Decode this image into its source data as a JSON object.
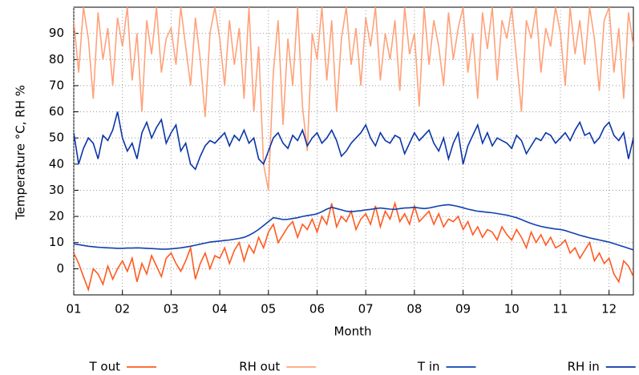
{
  "chart_data": {
    "type": "line",
    "xlabel": "Month",
    "ylabel": "Temperature °C, RH %",
    "x": [
      1.0,
      1.1,
      1.2,
      1.3,
      1.4,
      1.5,
      1.6,
      1.7,
      1.8,
      1.9,
      2.0,
      2.1,
      2.2,
      2.3,
      2.4,
      2.5,
      2.6,
      2.7,
      2.8,
      2.9,
      3.0,
      3.1,
      3.2,
      3.3,
      3.4,
      3.5,
      3.6,
      3.7,
      3.8,
      3.9,
      4.0,
      4.1,
      4.2,
      4.3,
      4.4,
      4.5,
      4.6,
      4.7,
      4.8,
      4.9,
      5.0,
      5.1,
      5.2,
      5.3,
      5.4,
      5.5,
      5.6,
      5.7,
      5.8,
      5.9,
      6.0,
      6.1,
      6.2,
      6.3,
      6.4,
      6.5,
      6.6,
      6.7,
      6.8,
      6.9,
      7.0,
      7.1,
      7.2,
      7.3,
      7.4,
      7.5,
      7.6,
      7.7,
      7.8,
      7.9,
      8.0,
      8.1,
      8.2,
      8.3,
      8.4,
      8.5,
      8.6,
      8.7,
      8.8,
      8.9,
      9.0,
      9.1,
      9.2,
      9.3,
      9.4,
      9.5,
      9.6,
      9.7,
      9.8,
      9.9,
      10.0,
      10.1,
      10.2,
      10.3,
      10.4,
      10.5,
      10.6,
      10.7,
      10.8,
      10.9,
      11.0,
      11.1,
      11.2,
      11.3,
      11.4,
      11.5,
      11.6,
      11.7,
      11.8,
      11.9,
      12.0,
      12.1,
      12.2,
      12.3,
      12.4,
      12.5
    ],
    "series": [
      {
        "name": "T out",
        "color": "#ff5a1f",
        "values": [
          6,
          2,
          -3,
          -8,
          0,
          -2,
          -6,
          1,
          -4,
          0,
          3,
          -1,
          4,
          -5,
          2,
          -2,
          5,
          1,
          -3,
          4,
          6,
          2,
          -1,
          3,
          8,
          -4,
          2,
          6,
          0,
          5,
          4,
          8,
          2,
          7,
          10,
          3,
          9,
          6,
          12,
          8,
          14,
          17,
          10,
          13,
          16,
          18,
          12,
          17,
          15,
          19,
          14,
          20,
          17,
          25,
          16,
          20,
          18,
          22,
          15,
          19,
          21,
          17,
          24,
          16,
          22,
          19,
          25,
          18,
          21,
          17,
          24,
          18,
          20,
          22,
          17,
          21,
          16,
          19,
          18,
          20,
          15,
          18,
          13,
          16,
          12,
          15,
          14,
          11,
          16,
          13,
          11,
          15,
          12,
          8,
          14,
          10,
          13,
          9,
          12,
          8,
          9,
          11,
          6,
          8,
          4,
          7,
          10,
          3,
          6,
          2,
          4,
          -2,
          -5,
          3,
          1,
          -3
        ]
      },
      {
        "name": "RH out",
        "color": "#ffa27a",
        "values": [
          95,
          75,
          100,
          88,
          65,
          98,
          80,
          92,
          70,
          96,
          85,
          100,
          72,
          90,
          60,
          95,
          82,
          100,
          75,
          88,
          92,
          78,
          100,
          85,
          70,
          96,
          80,
          58,
          90,
          100,
          88,
          70,
          95,
          78,
          92,
          65,
          100,
          60,
          85,
          40,
          30,
          75,
          95,
          55,
          88,
          70,
          100,
          62,
          45,
          90,
          80,
          100,
          72,
          95,
          60,
          88,
          100,
          78,
          92,
          70,
          96,
          85,
          100,
          72,
          90,
          80,
          95,
          68,
          100,
          82,
          90,
          62,
          100,
          78,
          95,
          85,
          70,
          98,
          80,
          92,
          100,
          75,
          90,
          65,
          98,
          84,
          100,
          72,
          95,
          88,
          100,
          80,
          60,
          95,
          88,
          100,
          75,
          92,
          85,
          100,
          90,
          70,
          100,
          82,
          95,
          78,
          100,
          88,
          68,
          95,
          100,
          75,
          92,
          65,
          98,
          85
        ]
      },
      {
        "name": "T in",
        "color": "#1040b0",
        "values": [
          9.5,
          9.2,
          8.9,
          8.6,
          8.4,
          8.2,
          8.1,
          8.0,
          7.9,
          7.8,
          7.8,
          7.9,
          7.9,
          8.0,
          7.9,
          7.8,
          7.7,
          7.6,
          7.5,
          7.5,
          7.6,
          7.8,
          8.0,
          8.3,
          8.6,
          9.0,
          9.4,
          9.8,
          10.2,
          10.4,
          10.6,
          10.8,
          11.0,
          11.3,
          11.6,
          12.0,
          12.8,
          13.8,
          15.0,
          16.5,
          18.0,
          19.5,
          19.2,
          18.8,
          18.9,
          19.2,
          19.5,
          20.0,
          20.3,
          20.6,
          21.0,
          21.8,
          22.8,
          23.5,
          23.0,
          22.5,
          22.0,
          21.8,
          22.0,
          22.2,
          22.5,
          22.7,
          23.0,
          23.2,
          23.0,
          22.8,
          22.7,
          23.0,
          23.2,
          23.3,
          23.5,
          23.2,
          23.0,
          23.2,
          23.6,
          24.0,
          24.3,
          24.5,
          24.2,
          23.8,
          23.3,
          22.8,
          22.4,
          22.0,
          21.8,
          21.6,
          21.4,
          21.1,
          20.8,
          20.5,
          20.0,
          19.5,
          18.8,
          18.0,
          17.3,
          16.7,
          16.2,
          15.8,
          15.5,
          15.2,
          15.0,
          14.6,
          14.0,
          13.4,
          12.8,
          12.3,
          11.8,
          11.4,
          11.0,
          10.6,
          10.2,
          9.6,
          9.0,
          8.4,
          7.8,
          7.2
        ]
      },
      {
        "name": "RH in",
        "color": "#0a35a8",
        "values": [
          52,
          40,
          46,
          50,
          48,
          42,
          51,
          49,
          53,
          60,
          50,
          45,
          48,
          42,
          52,
          56,
          50,
          54,
          57,
          48,
          52,
          55,
          45,
          48,
          40,
          38,
          43,
          47,
          49,
          48,
          50,
          52,
          47,
          51,
          49,
          53,
          48,
          50,
          42,
          40,
          45,
          50,
          52,
          48,
          46,
          51,
          49,
          53,
          47,
          50,
          52,
          48,
          50,
          53,
          49,
          43,
          45,
          48,
          50,
          52,
          55,
          50,
          47,
          52,
          49,
          48,
          51,
          50,
          44,
          48,
          52,
          49,
          51,
          53,
          48,
          45,
          50,
          42,
          48,
          52,
          40,
          47,
          51,
          55,
          48,
          52,
          47,
          50,
          49,
          48,
          46,
          51,
          49,
          44,
          47,
          50,
          49,
          52,
          51,
          48,
          50,
          52,
          49,
          53,
          56,
          51,
          52,
          48,
          50,
          54,
          56,
          51,
          49,
          52,
          42,
          50
        ]
      }
    ],
    "xlim": [
      1,
      12.5
    ],
    "xticks": [
      {
        "value": 1,
        "label": "01"
      },
      {
        "value": 2,
        "label": "02"
      },
      {
        "value": 3,
        "label": "03"
      },
      {
        "value": 4,
        "label": "04"
      },
      {
        "value": 5,
        "label": "05"
      },
      {
        "value": 6,
        "label": "06"
      },
      {
        "value": 7,
        "label": "07"
      },
      {
        "value": 8,
        "label": "08"
      },
      {
        "value": 9,
        "label": "09"
      },
      {
        "value": 10,
        "label": "10"
      },
      {
        "value": 11,
        "label": "11"
      },
      {
        "value": 12,
        "label": "12"
      }
    ],
    "ylim": [
      -10,
      100
    ],
    "yticks": [
      0,
      10,
      20,
      30,
      40,
      50,
      60,
      70,
      80,
      90
    ],
    "grid": true,
    "legend": "bottom"
  }
}
